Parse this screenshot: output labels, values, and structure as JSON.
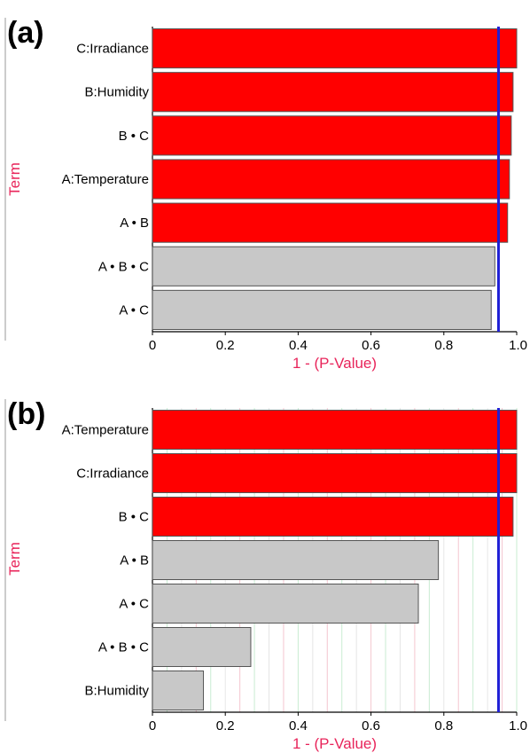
{
  "colors": {
    "significant": "#ff0000",
    "not_significant": "#c8c8c8",
    "threshold_line": "#1f1fd6",
    "axis_title": "#e8245a",
    "bar_border": "#555555"
  },
  "chart_data": [
    {
      "panel": "(a)",
      "type": "bar",
      "orientation": "horizontal",
      "categories": [
        "C:Irradiance",
        "B:Humidity",
        "B • C",
        "A:Temperature",
        "A • B",
        "A • B • C",
        "A • C"
      ],
      "values": [
        1.0,
        0.99,
        0.985,
        0.98,
        0.975,
        0.94,
        0.93
      ],
      "significant": [
        true,
        true,
        true,
        true,
        true,
        false,
        false
      ],
      "threshold": 0.95,
      "xlabel": "1 - (P-Value)",
      "ylabel": "Term",
      "xlim": [
        0,
        1.0
      ],
      "xticks": [
        "0",
        "0.2",
        "0.4",
        "0.6",
        "0.8",
        "1.0"
      ],
      "grid": false
    },
    {
      "panel": "(b)",
      "type": "bar",
      "orientation": "horizontal",
      "categories": [
        "A:Temperature",
        "C:Irradiance",
        "B • C",
        "A • B",
        "A • C",
        "A • B • C",
        "B:Humidity"
      ],
      "values": [
        1.0,
        1.0,
        0.99,
        0.785,
        0.73,
        0.27,
        0.14
      ],
      "significant": [
        true,
        true,
        true,
        false,
        false,
        false,
        false
      ],
      "threshold": 0.95,
      "xlabel": "1 - (P-Value)",
      "ylabel": "Term",
      "xlim": [
        0,
        1.0
      ],
      "xticks": [
        "0",
        "0.2",
        "0.4",
        "0.6",
        "0.8",
        "1.0"
      ],
      "grid": true
    }
  ]
}
